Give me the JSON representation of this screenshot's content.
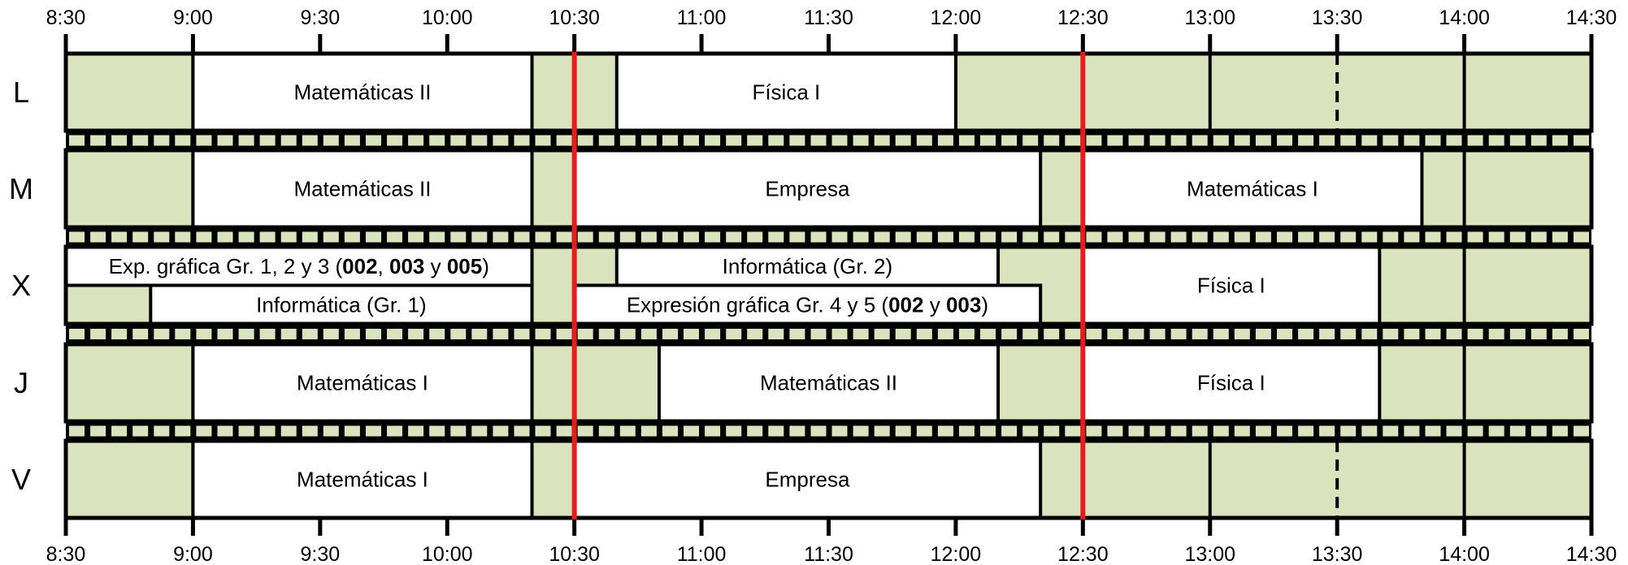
{
  "time_axis": {
    "start": "8:30",
    "end": "14:30",
    "ticks": [
      "8:30",
      "9:00",
      "9:30",
      "10:00",
      "10:30",
      "11:00",
      "11:30",
      "12:00",
      "12:30",
      "13:00",
      "13:30",
      "14:00",
      "14:30"
    ]
  },
  "colors": {
    "free": "#d9e4bf",
    "class": "#ffffff",
    "border": "#000000",
    "marker": "#e81c1c"
  },
  "markers": [
    "10:30",
    "12:30"
  ],
  "days": [
    {
      "label": "L",
      "rows": [
        [
          {
            "start": "9:00",
            "end": "10:20",
            "name": "Matemáticas II"
          },
          {
            "start": "10:40",
            "end": "12:00",
            "name": "Física I"
          }
        ]
      ]
    },
    {
      "label": "M",
      "rows": [
        [
          {
            "start": "9:00",
            "end": "10:20",
            "name": "Matemáticas II"
          },
          {
            "start": "10:30",
            "end": "12:20",
            "name": "Empresa"
          },
          {
            "start": "12:30",
            "end": "13:50",
            "name": "Matemáticas I"
          }
        ]
      ]
    },
    {
      "label": "X",
      "rows": [
        [
          {
            "start": "8:30",
            "end": "10:20",
            "name": [
              {
                "text": "Exp. gráfica Gr. 1, 2 y 3 ("
              },
              {
                "text": "002",
                "bold": true
              },
              {
                "text": ", "
              },
              {
                "text": "003",
                "bold": true
              },
              {
                "text": " y "
              },
              {
                "text": "005",
                "bold": true
              },
              {
                "text": ")"
              }
            ]
          },
          {
            "start": "10:40",
            "end": "12:10",
            "name": "Informática (Gr. 2)"
          }
        ],
        [
          {
            "start": "8:50",
            "end": "10:20",
            "name": "Informática (Gr. 1)"
          },
          {
            "start": "10:30",
            "end": "12:20",
            "name": [
              {
                "text": "Expresión gráfica Gr. 4 y 5 ("
              },
              {
                "text": "002",
                "bold": true
              },
              {
                "text": " y "
              },
              {
                "text": "003",
                "bold": true
              },
              {
                "text": ")"
              }
            ]
          }
        ]
      ],
      "spanning": [
        {
          "start": "12:30",
          "end": "13:40",
          "name": "Física I"
        }
      ]
    },
    {
      "label": "J",
      "rows": [
        [
          {
            "start": "9:00",
            "end": "10:20",
            "name": "Matemáticas I"
          },
          {
            "start": "10:50",
            "end": "12:10",
            "name": "Matemáticas II"
          },
          {
            "start": "12:30",
            "end": "13:40",
            "name": "Física I"
          }
        ]
      ]
    },
    {
      "label": "V",
      "rows": [
        [
          {
            "start": "9:00",
            "end": "10:20",
            "name": "Matemáticas I"
          },
          {
            "start": "10:30",
            "end": "12:20",
            "name": "Empresa"
          }
        ]
      ]
    }
  ]
}
